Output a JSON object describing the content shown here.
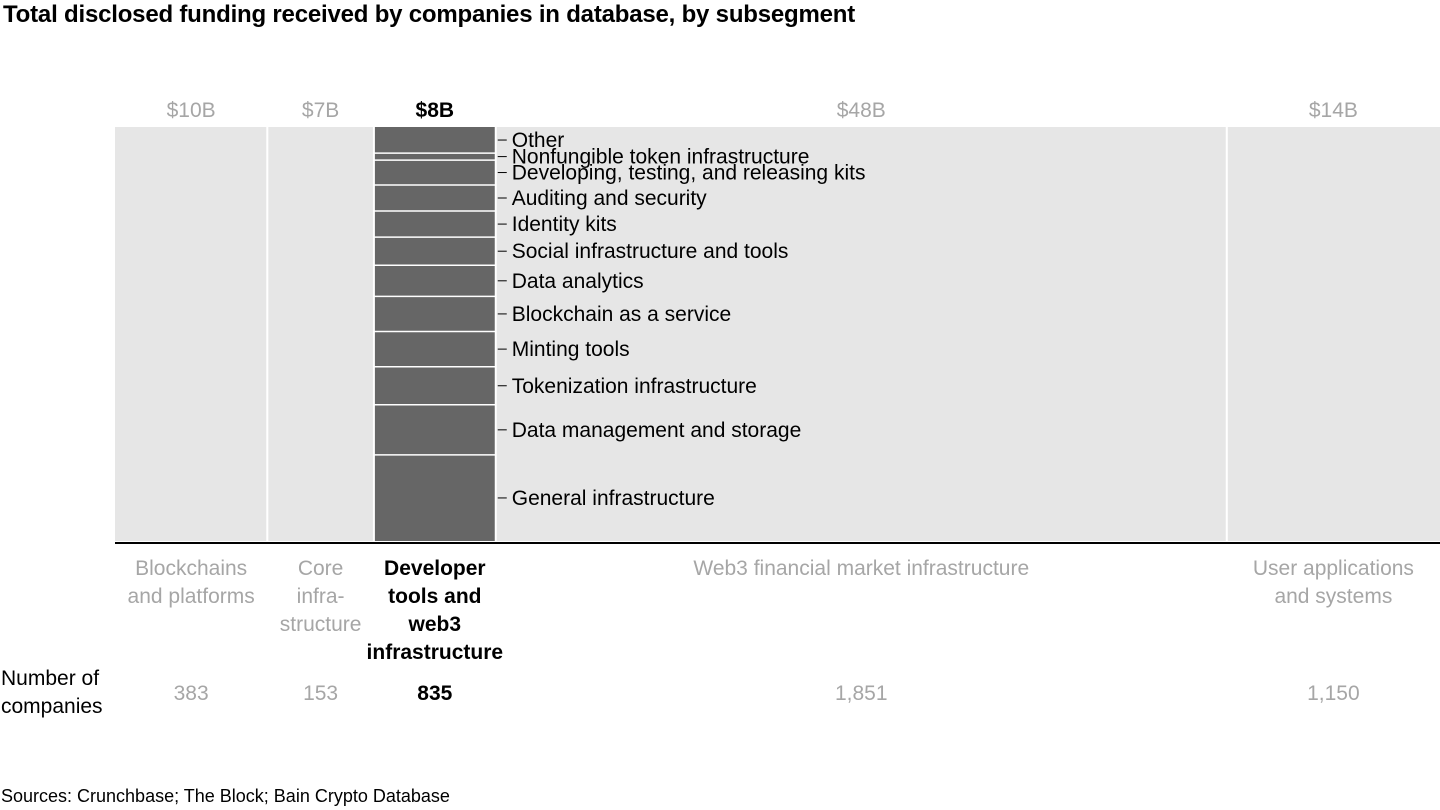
{
  "title": "Total disclosed funding received by companies in database, by subsegment",
  "row_label": "Number of companies",
  "source": "Sources: Crunchbase; The Block; Bain Crypto Database",
  "colors": {
    "background_segment": "#e6e6e6",
    "highlight_segment": "#666666",
    "dim_text": "#a6a6a6",
    "divider": "#ffffff",
    "axis": "#000000"
  },
  "chart_data": {
    "type": "bar",
    "title": "Total disclosed funding received by companies in database, by subsegment",
    "units": "$B",
    "segments": [
      {
        "label_lines": [
          "Blockchains",
          "and platforms"
        ],
        "funding": 10,
        "funding_label": "$10B",
        "companies": "383",
        "highlight": false
      },
      {
        "label_lines": [
          "Core",
          "infra-",
          "structure"
        ],
        "funding": 7,
        "funding_label": "$7B",
        "companies": "153",
        "highlight": false
      },
      {
        "label_lines": [
          "Developer",
          "tools and",
          "web3",
          "infrastructure"
        ],
        "funding": 8,
        "funding_label": "$8B",
        "companies": "835",
        "highlight": true
      },
      {
        "label_lines": [
          "Web3 financial market infrastructure"
        ],
        "funding": 48,
        "funding_label": "$48B",
        "companies": "1,851",
        "highlight": false
      },
      {
        "label_lines": [
          "User applications",
          "and systems"
        ],
        "funding": 14,
        "funding_label": "$14B",
        "companies": "1,150",
        "highlight": false
      }
    ],
    "highlight_breakdown": {
      "segment": "Developer tools and web3 infrastructure",
      "order": "top-to-bottom",
      "subsegments": [
        {
          "name": "Other",
          "share": 0.063
        },
        {
          "name": "Nonfungible token infrastructure",
          "share": 0.017
        },
        {
          "name": "Developing, testing, and releasing kits",
          "share": 0.06
        },
        {
          "name": "Auditing and security",
          "share": 0.063
        },
        {
          "name": "Identity kits",
          "share": 0.063
        },
        {
          "name": "Social infrastructure and tools",
          "share": 0.068
        },
        {
          "name": "Data analytics",
          "share": 0.075
        },
        {
          "name": "Blockchain as a service",
          "share": 0.085
        },
        {
          "name": "Minting tools",
          "share": 0.085
        },
        {
          "name": "Tokenization infrastructure",
          "share": 0.092
        },
        {
          "name": "Data management and storage",
          "share": 0.121
        },
        {
          "name": "General infrastructure",
          "share": 0.208
        }
      ]
    }
  }
}
